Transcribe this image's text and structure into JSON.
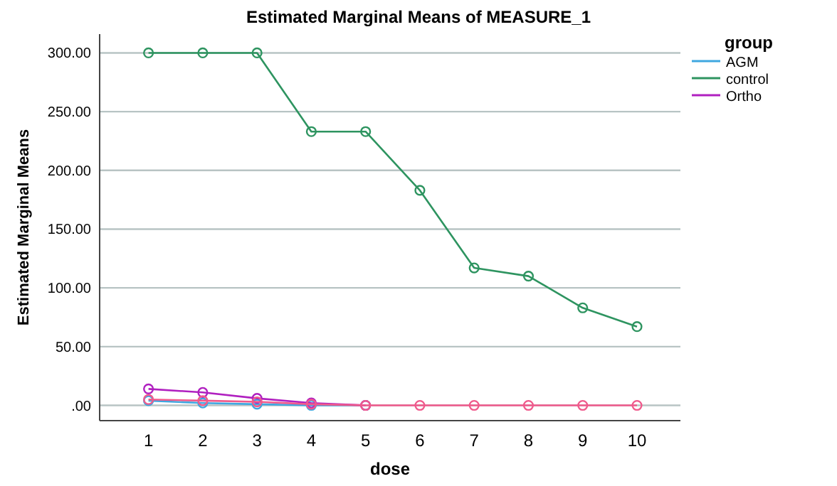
{
  "chart_data": {
    "type": "line",
    "title": "Estimated Marginal Means of MEASURE_1",
    "xlabel": "dose",
    "ylabel": "Estimated Marginal Means",
    "legend_title": "group",
    "categories": [
      "1",
      "2",
      "3",
      "4",
      "5",
      "6",
      "7",
      "8",
      "9",
      "10"
    ],
    "series": [
      {
        "name": "AGM",
        "color": "#3fa7e0",
        "values": [
          4,
          2,
          1,
          0,
          0,
          null,
          null,
          null,
          null,
          null
        ]
      },
      {
        "name": "control",
        "color": "#2e9460",
        "values": [
          300,
          300,
          300,
          233,
          233,
          183,
          117,
          110,
          83,
          67
        ]
      },
      {
        "name": "Ortho",
        "color": "#b020c0",
        "values": [
          14,
          11,
          6,
          2,
          0,
          null,
          null,
          null,
          null,
          null
        ]
      },
      {
        "color": "#f05a8c",
        "values": [
          5,
          4,
          3,
          1,
          0,
          0,
          0,
          0,
          0,
          0
        ]
      }
    ],
    "ylim": [
      -13,
      316
    ],
    "yticks": [
      {
        "value": 0,
        "label": ".00"
      },
      {
        "value": 50,
        "label": "50.00"
      },
      {
        "value": 100,
        "label": "100.00"
      },
      {
        "value": 150,
        "label": "150.00"
      },
      {
        "value": 200,
        "label": "200.00"
      },
      {
        "value": 250,
        "label": "250.00"
      },
      {
        "value": 300,
        "label": "300.00"
      }
    ],
    "grid": "y",
    "legend": "right",
    "marker": "circle",
    "line_style": "solid"
  }
}
